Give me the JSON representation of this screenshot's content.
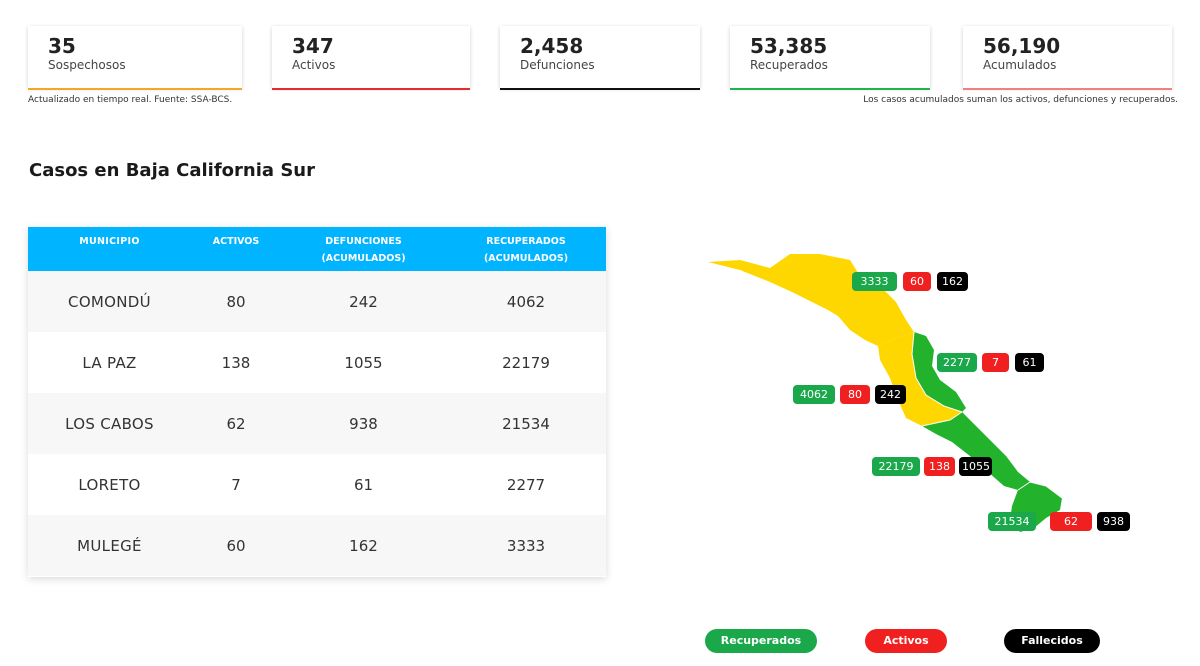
{
  "stats": [
    {
      "value": "35",
      "label": "Sospechosos",
      "color": "#f5a623"
    },
    {
      "value": "347",
      "label": "Activos",
      "color": "#e52b2b"
    },
    {
      "value": "2,458",
      "label": "Defunciones",
      "color": "#111111"
    },
    {
      "value": "53,385",
      "label": "Recuperados",
      "color": "#22b24c"
    },
    {
      "value": "56,190",
      "label": "Acumulados",
      "color": "#f08080"
    }
  ],
  "notes": {
    "left": "Actualizado en tiempo real. Fuente: SSA-BCS.",
    "right": "Los casos acumulados suman los activos, defunciones y recuperados."
  },
  "section_title": "Casos en Baja California Sur",
  "table": {
    "headers": {
      "municipio": "MUNICIPIO",
      "activos": "ACTIVOS",
      "defunciones_1": "DEFUNCIONES",
      "defunciones_2": "(ACUMULADOS)",
      "recuperados_1": "RECUPERADOS",
      "recuperados_2": "(ACUMULADOS)"
    },
    "rows": [
      {
        "municipio": "COMONDÚ",
        "activos": "80",
        "defunciones": "242",
        "recuperados": "4062"
      },
      {
        "municipio": "LA PAZ",
        "activos": "138",
        "defunciones": "1055",
        "recuperados": "22179"
      },
      {
        "municipio": "LOS CABOS",
        "activos": "62",
        "defunciones": "938",
        "recuperados": "21534"
      },
      {
        "municipio": "LORETO",
        "activos": "7",
        "defunciones": "61",
        "recuperados": "2277"
      },
      {
        "municipio": "MULEGÉ",
        "activos": "60",
        "defunciones": "162",
        "recuperados": "3333"
      }
    ]
  },
  "map": {
    "mulege": {
      "recuperados": "3333",
      "activos": "60",
      "fallecidos": "162"
    },
    "loreto": {
      "recuperados": "2277",
      "activos": "7",
      "fallecidos": "61"
    },
    "comondu": {
      "recuperados": "4062",
      "activos": "80",
      "fallecidos": "242"
    },
    "lapaz": {
      "recuperados": "22179",
      "activos": "138",
      "fallecidos": "1055"
    },
    "loscabos": {
      "recuperados": "21534",
      "activos": "62",
      "fallecidos": "938"
    },
    "colors": {
      "yellow": "#ffd700",
      "green": "#22b22c"
    }
  },
  "legend": {
    "recuperados": "Recuperados",
    "activos": "Activos",
    "fallecidos": "Fallecidos"
  }
}
